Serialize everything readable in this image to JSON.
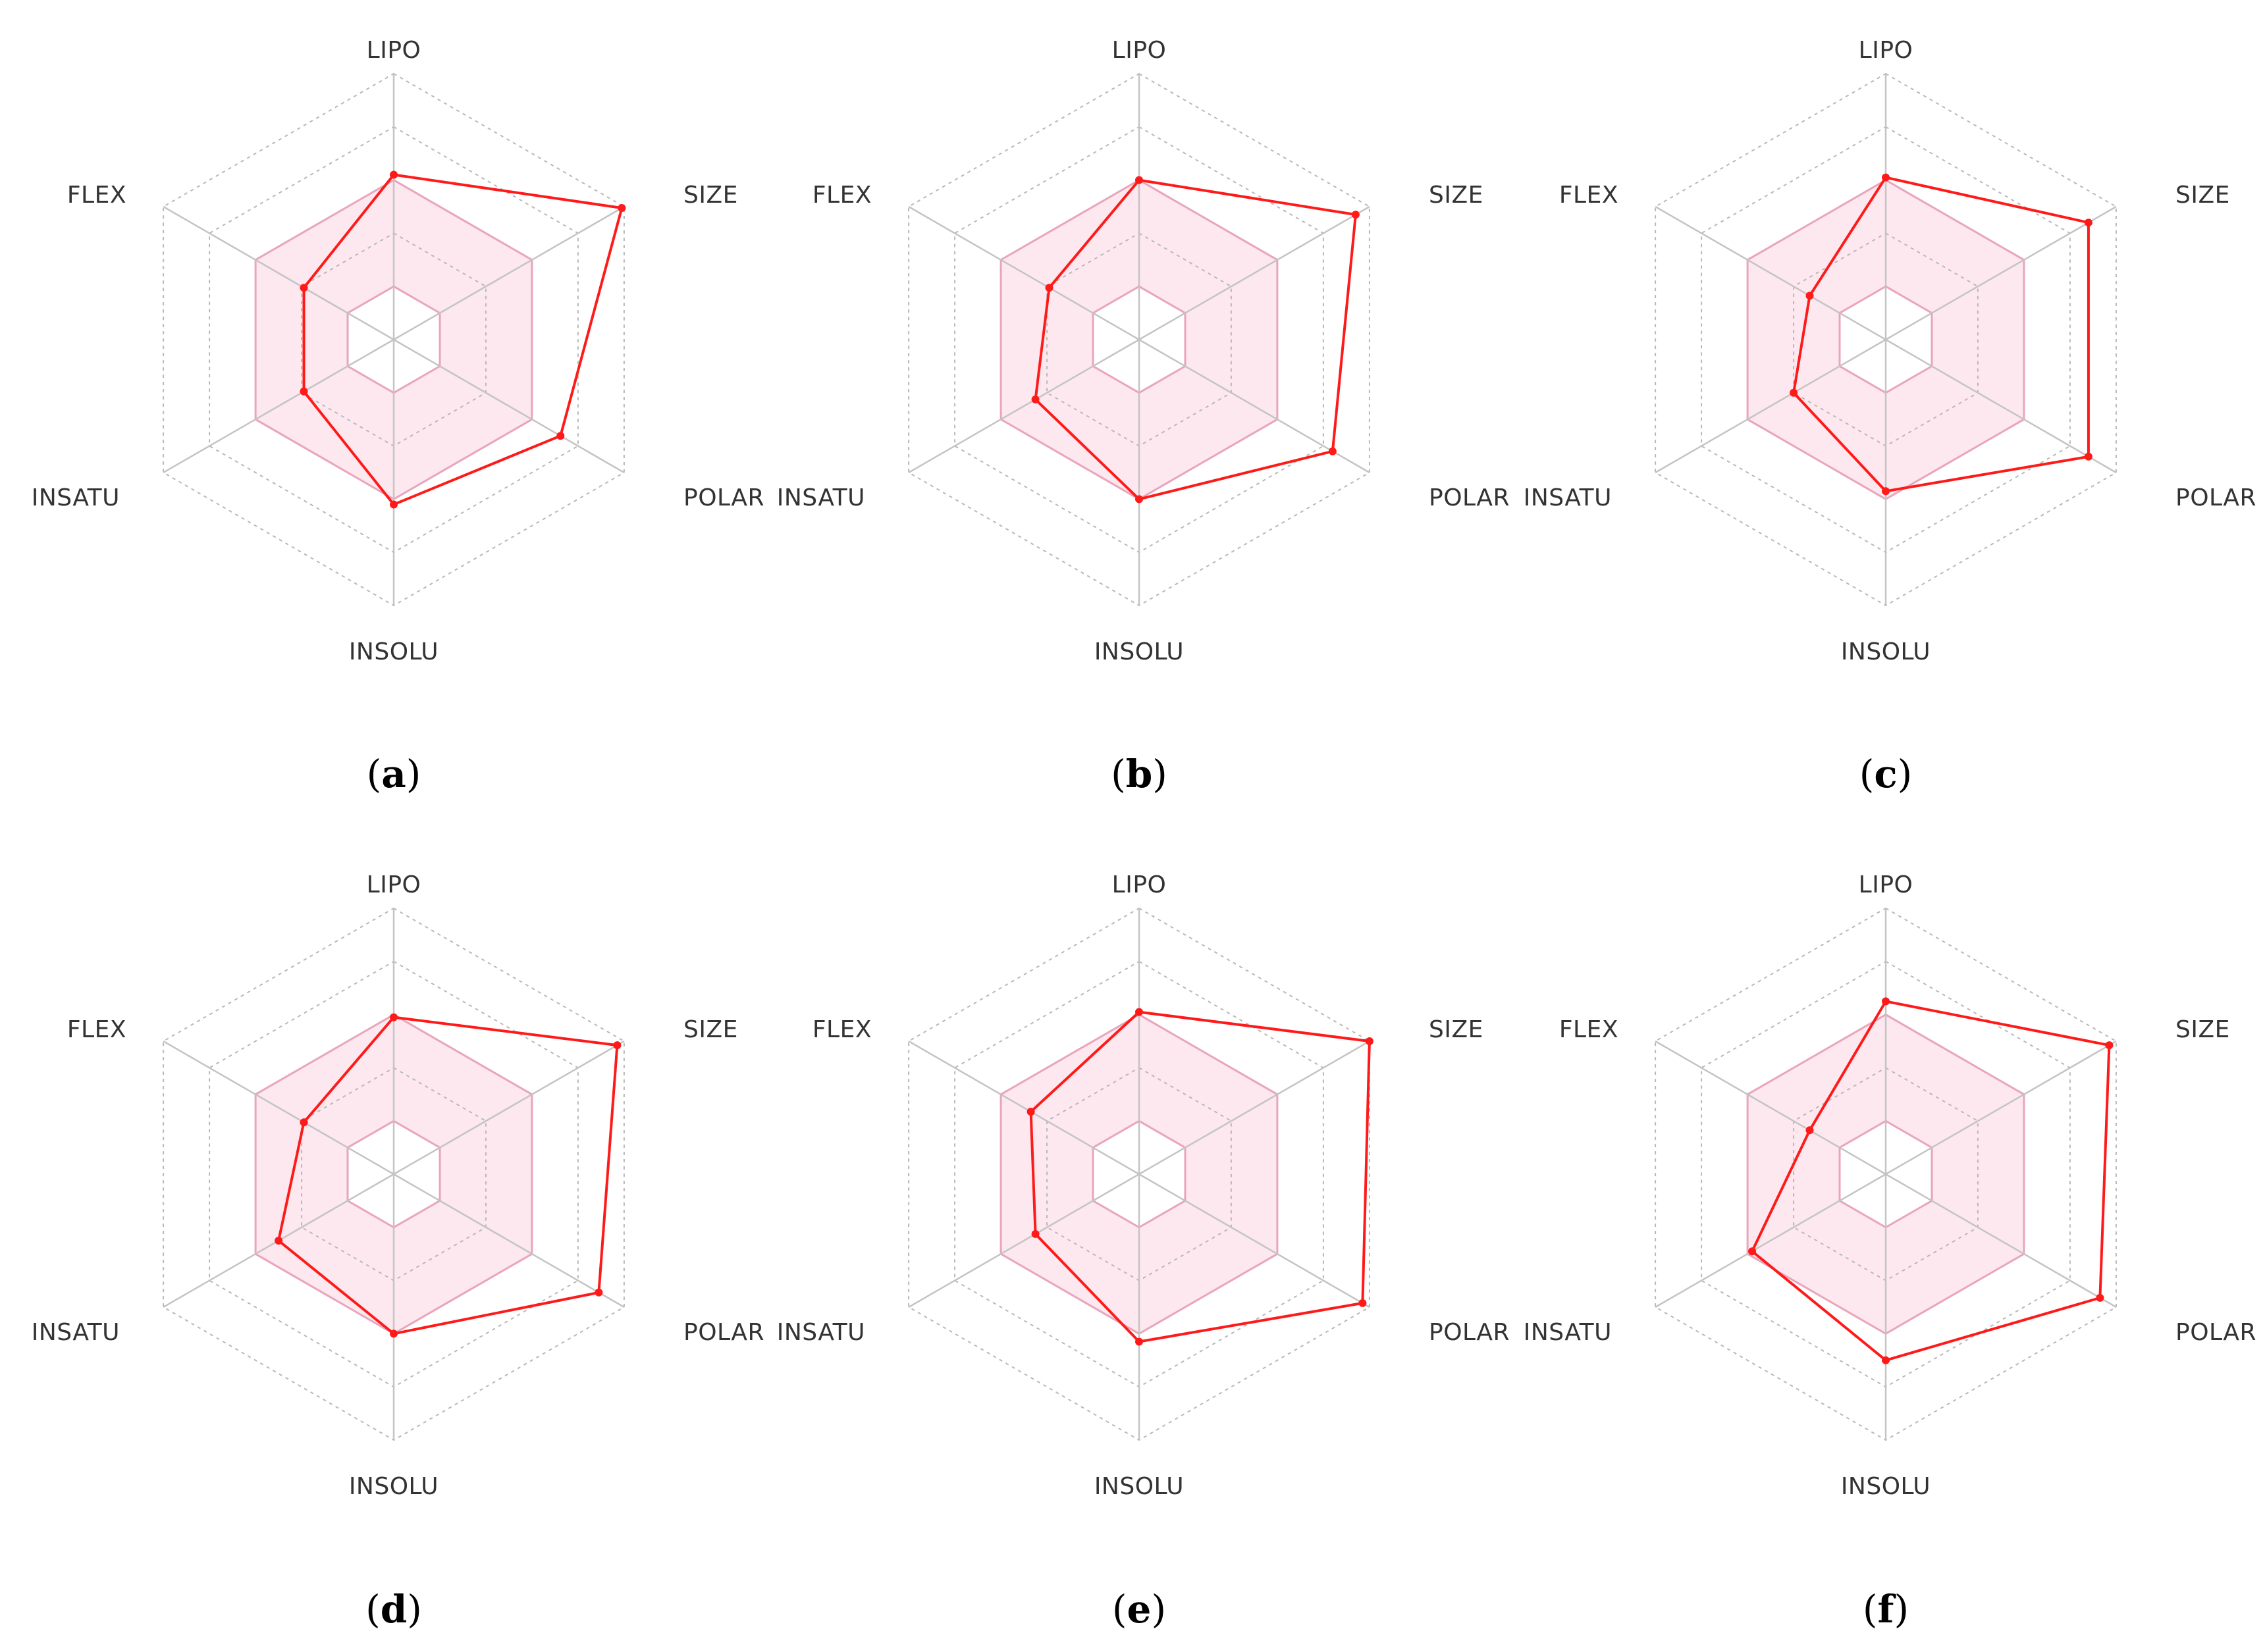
{
  "colors": {
    "series": "#ff1a1a",
    "band_fill": "#fde8ef",
    "band_stroke": "#e8a5bb",
    "grid": "#bdbdbd"
  },
  "chart_data": [
    {
      "type": "radar",
      "caption": "(a)",
      "caption_letter": "a",
      "axes": [
        "LIPO",
        "SIZE",
        "POLAR",
        "INSOLU",
        "INSATU",
        "FLEX"
      ],
      "range": [
        -2,
        3
      ],
      "rings": [
        -2,
        -1,
        0,
        1,
        2,
        3
      ],
      "band": {
        "inner": [
          -1,
          -1,
          -1,
          -1,
          -1,
          -1
        ],
        "outer": [
          1,
          1,
          1,
          1,
          1,
          1
        ]
      },
      "values": [
        1.1,
        2.95,
        1.62,
        1.1,
        -0.05,
        -0.05
      ]
    },
    {
      "type": "radar",
      "caption": "(b)",
      "caption_letter": "b",
      "axes": [
        "LIPO",
        "SIZE",
        "POLAR",
        "INSOLU",
        "INSATU",
        "FLEX"
      ],
      "range": [
        -2,
        3
      ],
      "rings": [
        -2,
        -1,
        0,
        1,
        2,
        3
      ],
      "band": {
        "inner": [
          -1,
          -1,
          -1,
          -1,
          -1,
          -1
        ],
        "outer": [
          1,
          1,
          1,
          1,
          1,
          1
        ]
      },
      "values": [
        1.0,
        2.7,
        2.2,
        1.0,
        0.25,
        -0.05
      ]
    },
    {
      "type": "radar",
      "caption": "(c)",
      "caption_letter": "c",
      "axes": [
        "LIPO",
        "SIZE",
        "POLAR",
        "INSOLU",
        "INSATU",
        "FLEX"
      ],
      "range": [
        -2,
        3
      ],
      "rings": [
        -2,
        -1,
        0,
        1,
        2,
        3
      ],
      "band": {
        "inner": [
          -1,
          -1,
          -1,
          -1,
          -1,
          -1
        ],
        "outer": [
          1,
          1,
          1,
          1,
          1,
          1
        ]
      },
      "values": [
        1.05,
        2.4,
        2.4,
        0.85,
        0.0,
        -0.35
      ]
    },
    {
      "type": "radar",
      "caption": "(d)",
      "caption_letter": "d",
      "axes": [
        "LIPO",
        "SIZE",
        "POLAR",
        "INSOLU",
        "INSATU",
        "FLEX"
      ],
      "range": [
        -2,
        3
      ],
      "rings": [
        -2,
        -1,
        0,
        1,
        2,
        3
      ],
      "band": {
        "inner": [
          -1,
          -1,
          -1,
          -1,
          -1,
          -1
        ],
        "outer": [
          1,
          1,
          1,
          1,
          1,
          1
        ]
      },
      "values": [
        0.95,
        2.85,
        2.45,
        1.0,
        0.5,
        -0.05
      ]
    },
    {
      "type": "radar",
      "caption": "(e)",
      "caption_letter": "e",
      "axes": [
        "LIPO",
        "SIZE",
        "POLAR",
        "INSOLU",
        "INSATU",
        "FLEX"
      ],
      "range": [
        -2,
        3
      ],
      "rings": [
        -2,
        -1,
        0,
        1,
        2,
        3
      ],
      "band": {
        "inner": [
          -1,
          -1,
          -1,
          -1,
          -1,
          -1
        ],
        "outer": [
          1,
          1,
          1,
          1,
          1,
          1
        ]
      },
      "values": [
        1.05,
        3.0,
        2.85,
        1.15,
        0.25,
        0.35
      ]
    },
    {
      "type": "radar",
      "caption": "(f)",
      "caption_letter": "f",
      "axes": [
        "LIPO",
        "SIZE",
        "POLAR",
        "INSOLU",
        "INSATU",
        "FLEX"
      ],
      "range": [
        -2,
        3
      ],
      "rings": [
        -2,
        -1,
        0,
        1,
        2,
        3
      ],
      "band": {
        "inner": [
          -1,
          -1,
          -1,
          -1,
          -1,
          -1
        ],
        "outer": [
          1,
          1,
          1,
          1,
          1,
          1
        ]
      },
      "values": [
        1.25,
        2.85,
        2.65,
        1.5,
        0.9,
        -0.35
      ]
    }
  ]
}
